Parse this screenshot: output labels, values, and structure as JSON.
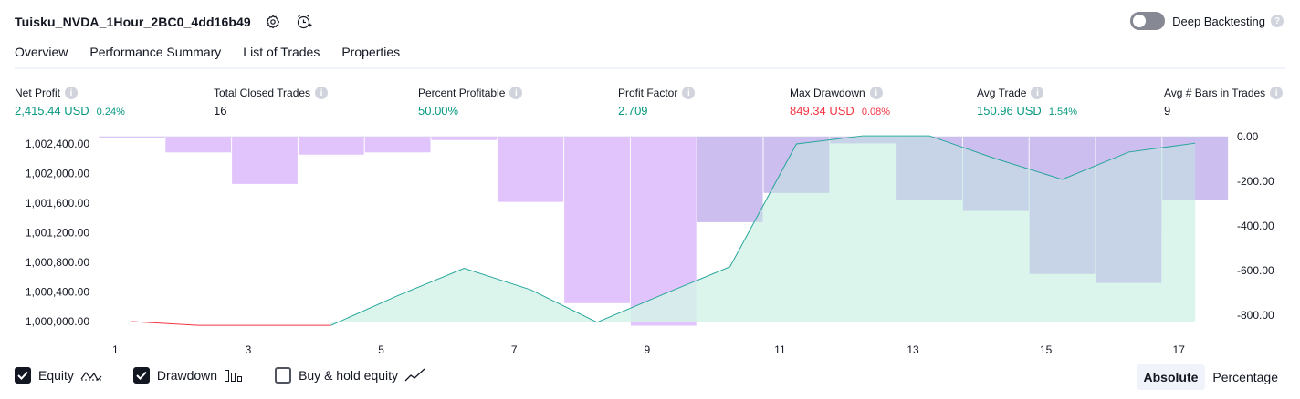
{
  "header": {
    "strategy_title": "Tuisku_NVDA_1Hour_2BC0_4dd16b49",
    "settings_icon": "gear-icon",
    "alert_icon": "add-alert-clock-icon",
    "deep_backtesting_label": "Deep Backtesting",
    "deep_backtesting_enabled": false
  },
  "tabs": [
    {
      "label": "Overview",
      "active": true
    },
    {
      "label": "Performance Summary",
      "active": false
    },
    {
      "label": "List of Trades",
      "active": false
    },
    {
      "label": "Properties",
      "active": false
    }
  ],
  "metrics": [
    {
      "label": "Net Profit",
      "value": "2,415.44 USD",
      "pct": "0.24%",
      "tone": "green"
    },
    {
      "label": "Total Closed Trades",
      "value": "16",
      "pct": "",
      "tone": "dark"
    },
    {
      "label": "Percent Profitable",
      "value": "50.00%",
      "pct": "",
      "tone": "green"
    },
    {
      "label": "Profit Factor",
      "value": "2.709",
      "pct": "",
      "tone": "green"
    },
    {
      "label": "Max Drawdown",
      "value": "849.34 USD",
      "pct": "0.08%",
      "tone": "red"
    },
    {
      "label": "Avg Trade",
      "value": "150.96 USD",
      "pct": "1.54%",
      "tone": "green"
    },
    {
      "label": "Avg # Bars in Trades",
      "value": "9",
      "pct": "",
      "tone": "dark"
    }
  ],
  "chart_data": {
    "type": "line",
    "x": [
      1,
      2,
      3,
      4,
      5,
      6,
      7,
      8,
      9,
      10,
      11,
      12,
      13,
      14,
      15,
      16,
      17
    ],
    "x_tick_labels": [
      "1",
      "3",
      "5",
      "7",
      "9",
      "11",
      "13",
      "15",
      "17"
    ],
    "y_left_tick_labels": [
      "1,002,400.00",
      "1,002,000.00",
      "1,001,600.00",
      "1,001,200.00",
      "1,000,800.00",
      "1,000,400.00",
      "1,000,000.00"
    ],
    "y_right_tick_labels": [
      "0.00",
      "-200.00",
      "-400.00",
      "-600.00",
      "-800.00"
    ],
    "y_left_range": [
      999910,
      1002510
    ],
    "y_right_range": [
      -850,
      0
    ],
    "equity": [
      1000000,
      999950,
      999950,
      999950,
      1000350,
      1000720,
      1000430,
      999990,
      1000370,
      1000740,
      1002400,
      1002510,
      1002510,
      1002200,
      1001920,
      1002290,
      1002410
    ],
    "drawdown": [
      -5,
      -70,
      -210,
      -80,
      -70,
      -15,
      -290,
      -740,
      -840,
      -380,
      -250,
      -30,
      -280,
      -330,
      -610,
      -650,
      -280
    ],
    "colors": {
      "equity_profit": "#26a69a",
      "equity_loss": "#f23645",
      "equity_fill": "#d5f2e9",
      "drawdown_fill": "#e1c4fb",
      "drawdown_overlap": "#b4b8e0"
    }
  },
  "legend": [
    {
      "label": "Equity",
      "checked": true,
      "icon": "equity-line-icon"
    },
    {
      "label": "Drawdown",
      "checked": true,
      "icon": "drawdown-bars-icon"
    },
    {
      "label": "Buy & hold equity",
      "checked": false,
      "icon": "buy-hold-line-icon"
    }
  ],
  "view_modes": [
    {
      "label": "Absolute",
      "active": true
    },
    {
      "label": "Percentage",
      "active": false
    }
  ]
}
